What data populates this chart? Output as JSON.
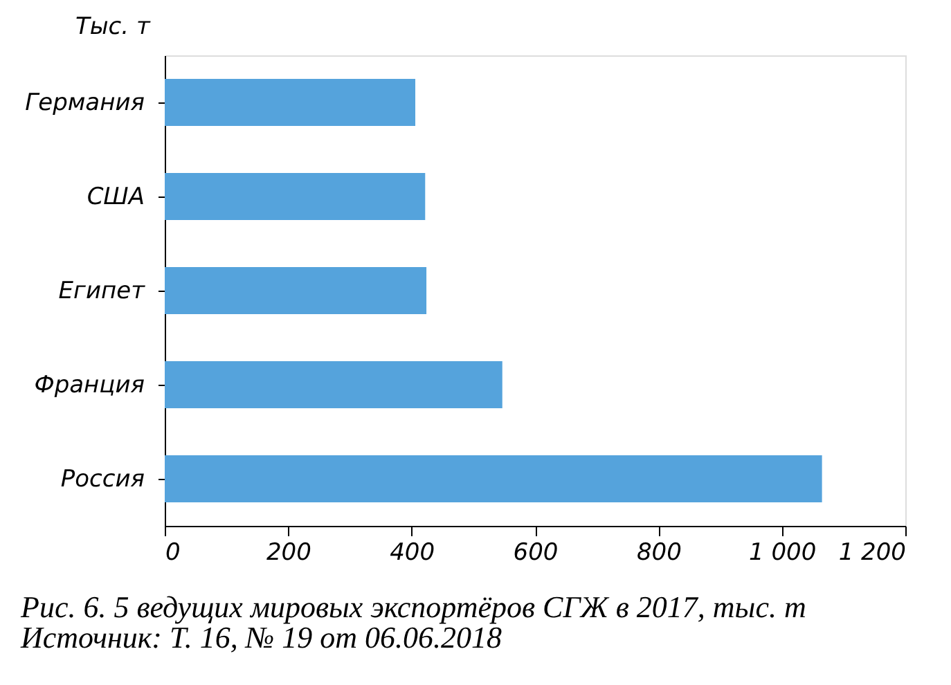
{
  "chart_data": {
    "type": "bar",
    "orientation": "horizontal",
    "ylabel": "Тыс. т",
    "categories": [
      "Германия",
      "США",
      "Египет",
      "Франция",
      "Россия"
    ],
    "values": [
      406,
      422,
      424,
      547,
      1065
    ],
    "color": "#55a3dc",
    "xlim": [
      0,
      1200
    ],
    "xticks": [
      0,
      200,
      400,
      600,
      800,
      {
        "value": 1000,
        "label": "1 000"
      },
      {
        "value": 1200,
        "label": "1 200"
      }
    ],
    "grid": false,
    "annotations": [
      "Рис. 6. 5 ведущих мировых экспортёров СГЖ в 2017, тыс. т",
      "Источник: Т. 16, № 19 от 06.06.2018"
    ]
  }
}
